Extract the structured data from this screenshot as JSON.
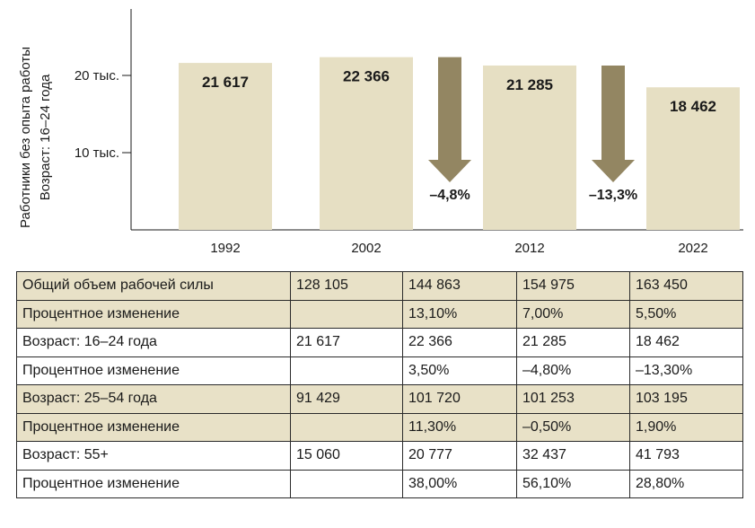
{
  "colors": {
    "bar": "#e6dfc3",
    "arrow": "#938662",
    "axis": "#1a1a1a",
    "row_shade": "#e8e1c7"
  },
  "chart_data": {
    "type": "bar",
    "categories": [
      "1992",
      "2002",
      "2012",
      "2022"
    ],
    "values": [
      21617,
      22366,
      21285,
      18462
    ],
    "value_labels": [
      "21 617",
      "22 366",
      "21 285",
      "18 462"
    ],
    "ylabel_lines": [
      "Работники без опыта работы",
      "Возраст: 16–24 года"
    ],
    "y_ticks": [
      {
        "value": 10000,
        "label": "10 тыс."
      },
      {
        "value": 20000,
        "label": "20 тыс."
      }
    ],
    "ylim": [
      0,
      26000
    ],
    "changes": [
      {
        "between": [
          "2002",
          "2012"
        ],
        "label": "–4,8%"
      },
      {
        "between": [
          "2012",
          "2022"
        ],
        "label": "–13,3%"
      }
    ],
    "legend": "none",
    "grid": false
  },
  "table": {
    "rows": [
      {
        "shaded": true,
        "cells": [
          "Общий объем рабочей силы",
          "128 105",
          "144 863",
          "154 975",
          "163 450"
        ]
      },
      {
        "shaded": true,
        "cells": [
          "Процентное изменение",
          "",
          "13,10%",
          "7,00%",
          "5,50%"
        ]
      },
      {
        "shaded": false,
        "cells": [
          "Возраст: 16–24 года",
          "21 617",
          "22 366",
          "21 285",
          "18 462"
        ]
      },
      {
        "shaded": false,
        "cells": [
          "Процентное изменение",
          "",
          "3,50%",
          "–4,80%",
          "–13,30%"
        ]
      },
      {
        "shaded": true,
        "cells": [
          "Возраст: 25–54 года",
          "91 429",
          "101 720",
          "101 253",
          "103 195"
        ]
      },
      {
        "shaded": true,
        "cells": [
          "Процентное изменение",
          "",
          "11,30%",
          "–0,50%",
          "1,90%"
        ]
      },
      {
        "shaded": false,
        "cells": [
          "Возраст: 55+",
          "15 060",
          "20 777",
          "32 437",
          "41 793"
        ]
      },
      {
        "shaded": false,
        "cells": [
          "Процентное изменение",
          "",
          "38,00%",
          "56,10%",
          "28,80%"
        ]
      }
    ]
  }
}
